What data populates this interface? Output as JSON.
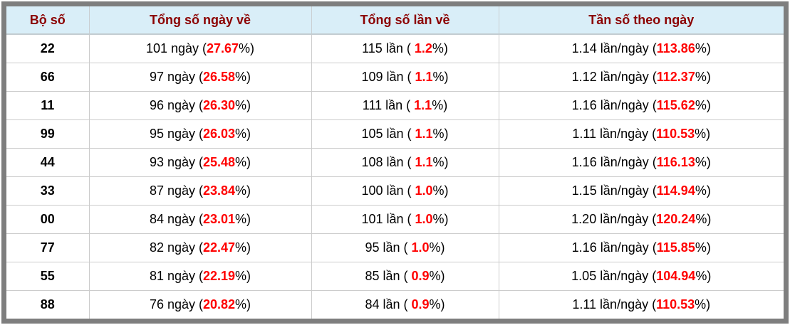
{
  "colors": {
    "frame_border": "#7e7e7e",
    "header_bg": "#d9eef8",
    "header_text": "#8b0000",
    "highlight_red": "#ff0000",
    "body_text": "#000000",
    "grid_line": "#cccccc"
  },
  "chart_data": {
    "type": "table",
    "columns": [
      "Bộ số",
      "Tổng số ngày về",
      "Tổng số lần về",
      "Tần số theo ngày"
    ],
    "rows": [
      {
        "bo_so": "22",
        "ngay": {
          "pre": "101 ngày (",
          "hl": "27.67",
          "post": "%)"
        },
        "lan": {
          "pre": "115 lần ( ",
          "hl": "1.2",
          "post": "%)"
        },
        "tan_so": {
          "pre": "1.14 lần/ngày (",
          "hl": "113.86",
          "post": "%)"
        }
      },
      {
        "bo_so": "66",
        "ngay": {
          "pre": "97 ngày (",
          "hl": "26.58",
          "post": "%)"
        },
        "lan": {
          "pre": "109 lần ( ",
          "hl": "1.1",
          "post": "%)"
        },
        "tan_so": {
          "pre": "1.12 lần/ngày (",
          "hl": "112.37",
          "post": "%)"
        }
      },
      {
        "bo_so": "11",
        "ngay": {
          "pre": "96 ngày (",
          "hl": "26.30",
          "post": "%)"
        },
        "lan": {
          "pre": "111 lần ( ",
          "hl": "1.1",
          "post": "%)"
        },
        "tan_so": {
          "pre": "1.16 lần/ngày (",
          "hl": "115.62",
          "post": "%)"
        }
      },
      {
        "bo_so": "99",
        "ngay": {
          "pre": "95 ngày (",
          "hl": "26.03",
          "post": "%)"
        },
        "lan": {
          "pre": "105 lần ( ",
          "hl": "1.1",
          "post": "%)"
        },
        "tan_so": {
          "pre": "1.11 lần/ngày (",
          "hl": "110.53",
          "post": "%)"
        }
      },
      {
        "bo_so": "44",
        "ngay": {
          "pre": "93 ngày (",
          "hl": "25.48",
          "post": "%)"
        },
        "lan": {
          "pre": "108 lần ( ",
          "hl": "1.1",
          "post": "%)"
        },
        "tan_so": {
          "pre": "1.16 lần/ngày (",
          "hl": "116.13",
          "post": "%)"
        }
      },
      {
        "bo_so": "33",
        "ngay": {
          "pre": "87 ngày (",
          "hl": "23.84",
          "post": "%)"
        },
        "lan": {
          "pre": "100 lần ( ",
          "hl": "1.0",
          "post": "%)"
        },
        "tan_so": {
          "pre": "1.15 lần/ngày (",
          "hl": "114.94",
          "post": "%)"
        }
      },
      {
        "bo_so": "00",
        "ngay": {
          "pre": "84 ngày (",
          "hl": "23.01",
          "post": "%)"
        },
        "lan": {
          "pre": "101 lần ( ",
          "hl": "1.0",
          "post": "%)"
        },
        "tan_so": {
          "pre": "1.20 lần/ngày (",
          "hl": "120.24",
          "post": "%)"
        }
      },
      {
        "bo_so": "77",
        "ngay": {
          "pre": "82 ngày (",
          "hl": "22.47",
          "post": "%)"
        },
        "lan": {
          "pre": "95 lần ( ",
          "hl": "1.0",
          "post": "%)"
        },
        "tan_so": {
          "pre": "1.16 lần/ngày (",
          "hl": "115.85",
          "post": "%)"
        }
      },
      {
        "bo_so": "55",
        "ngay": {
          "pre": "81 ngày (",
          "hl": "22.19",
          "post": "%)"
        },
        "lan": {
          "pre": "85 lần ( ",
          "hl": "0.9",
          "post": "%)"
        },
        "tan_so": {
          "pre": "1.05 lần/ngày (",
          "hl": "104.94",
          "post": "%)"
        }
      },
      {
        "bo_so": "88",
        "ngay": {
          "pre": "76 ngày (",
          "hl": "20.82",
          "post": "%)"
        },
        "lan": {
          "pre": "84 lần ( ",
          "hl": "0.9",
          "post": "%)"
        },
        "tan_so": {
          "pre": "1.11 lần/ngày (",
          "hl": "110.53",
          "post": "%)"
        }
      }
    ]
  }
}
